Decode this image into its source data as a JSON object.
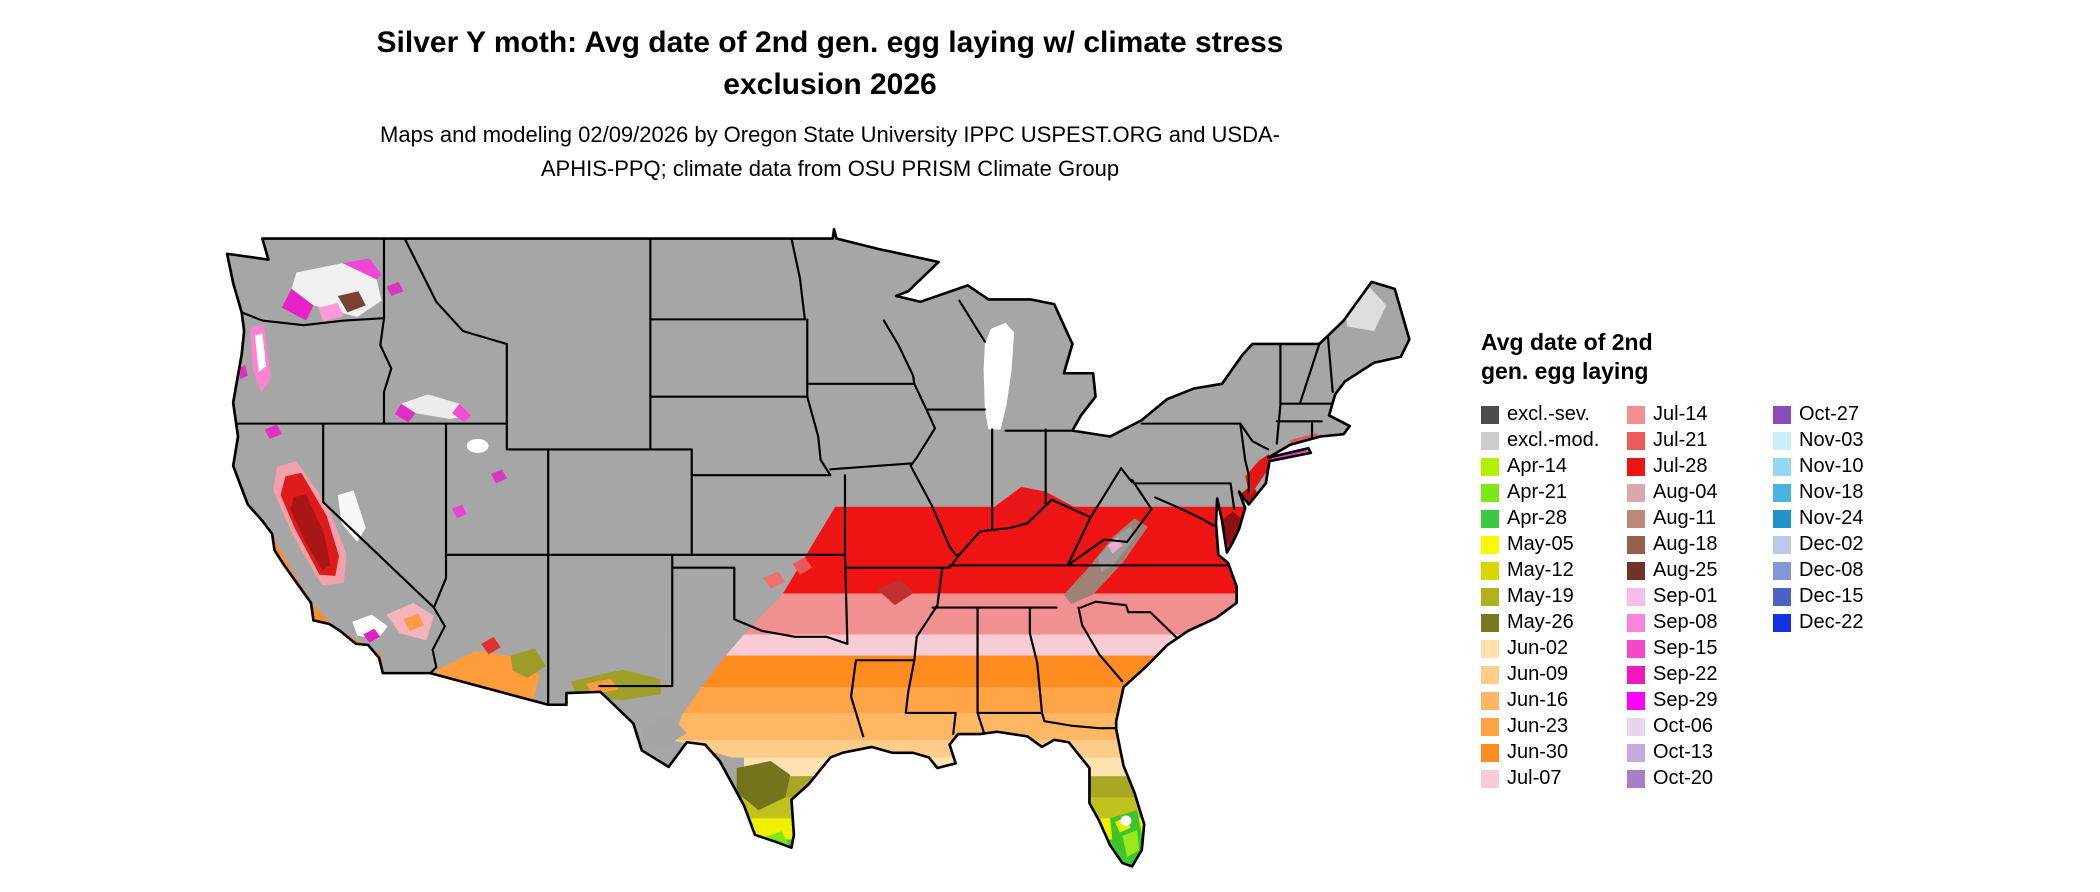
{
  "header": {
    "title": "Silver Y moth: Avg date of 2nd gen. egg laying w/ climate stress exclusion 2026",
    "subtitle": "Maps and modeling 02/09/2026 by Oregon State University IPPC USPEST.ORG and USDA-APHIS-PPQ; climate data from OSU PRISM Climate Group"
  },
  "map_colors": {
    "excluded_fill": "#a6a6a6",
    "water_fill": "#ffffff",
    "border": "#000000"
  },
  "legend": {
    "title_lines": [
      "Avg date of 2nd",
      "gen. egg laying"
    ],
    "columns": [
      {
        "items": [
          {
            "label": "excl.-sev.",
            "color": "#4d4d4d"
          },
          {
            "label": "excl.-mod.",
            "color": "#cccccc"
          },
          {
            "label": "Apr-14",
            "color": "#b2f000"
          },
          {
            "label": "Apr-21",
            "color": "#7de818"
          },
          {
            "label": "Apr-28",
            "color": "#3cc83c"
          },
          {
            "label": "May-05",
            "color": "#f8f800"
          },
          {
            "label": "May-12",
            "color": "#d8d800"
          },
          {
            "label": "May-19",
            "color": "#b0b020"
          },
          {
            "label": "May-26",
            "color": "#787820"
          },
          {
            "label": "Jun-02",
            "color": "#ffe2b0"
          },
          {
            "label": "Jun-09",
            "color": "#ffcc8a"
          },
          {
            "label": "Jun-16",
            "color": "#ffb764"
          },
          {
            "label": "Jun-23",
            "color": "#ffa446"
          },
          {
            "label": "Jun-30",
            "color": "#ff8c1f"
          },
          {
            "label": "Jul-07",
            "color": "#f8ccd4"
          }
        ]
      },
      {
        "items": [
          {
            "label": "Jul-14",
            "color": "#f09090"
          },
          {
            "label": "Jul-21",
            "color": "#ee5a5a"
          },
          {
            "label": "Jul-28",
            "color": "#ee1414"
          },
          {
            "label": "Aug-04",
            "color": "#d8a8b0"
          },
          {
            "label": "Aug-11",
            "color": "#bd8878"
          },
          {
            "label": "Aug-18",
            "color": "#96604c"
          },
          {
            "label": "Aug-25",
            "color": "#703426"
          },
          {
            "label": "Sep-01",
            "color": "#f8bce8"
          },
          {
            "label": "Sep-08",
            "color": "#f884dc"
          },
          {
            "label": "Sep-15",
            "color": "#f448cc"
          },
          {
            "label": "Sep-22",
            "color": "#ee18bc"
          },
          {
            "label": "Sep-29",
            "color": "#ff00ff"
          },
          {
            "label": "Oct-06",
            "color": "#e4d4ee"
          },
          {
            "label": "Oct-13",
            "color": "#c6aade"
          },
          {
            "label": "Oct-20",
            "color": "#a87ec9"
          }
        ]
      },
      {
        "items": [
          {
            "label": "Oct-27",
            "color": "#8a4cb8"
          },
          {
            "label": "Nov-03",
            "color": "#cceef8"
          },
          {
            "label": "Nov-10",
            "color": "#92d8f0"
          },
          {
            "label": "Nov-18",
            "color": "#4ab4e0"
          },
          {
            "label": "Nov-24",
            "color": "#2292c8"
          },
          {
            "label": "Dec-02",
            "color": "#bcc8e6"
          },
          {
            "label": "Dec-08",
            "color": "#8298d6"
          },
          {
            "label": "Dec-15",
            "color": "#4a62c4"
          },
          {
            "label": "Dec-22",
            "color": "#1430e8"
          }
        ]
      }
    ]
  }
}
